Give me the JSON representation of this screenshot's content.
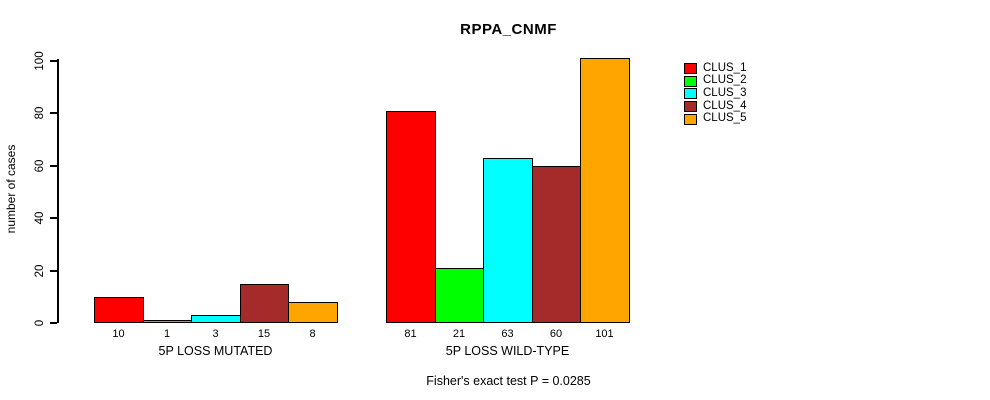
{
  "chart_data": {
    "type": "bar",
    "title": "RPPA_CNMF",
    "ylabel": "number of cases",
    "ylim": [
      0,
      100
    ],
    "yticks": [
      0,
      20,
      40,
      60,
      80,
      100
    ],
    "grid": false,
    "legend_position": "right",
    "categories": [
      "5P LOSS MUTATED",
      "5P LOSS WILD-TYPE"
    ],
    "series": [
      {
        "name": "CLUS_1",
        "color": "#FF0000",
        "values": [
          10,
          81
        ]
      },
      {
        "name": "CLUS_2",
        "color": "#00FF00",
        "values": [
          1,
          21
        ]
      },
      {
        "name": "CLUS_3",
        "color": "#00FFFF",
        "values": [
          3,
          63
        ]
      },
      {
        "name": "CLUS_4",
        "color": "#A52A2A",
        "values": [
          15,
          60
        ]
      },
      {
        "name": "CLUS_5",
        "color": "#FFA500",
        "values": [
          8,
          101
        ]
      }
    ],
    "bar_value_labels": [
      [
        "10",
        "1",
        "3",
        "15",
        "8"
      ],
      [
        "81",
        "21",
        "63",
        "60",
        "101"
      ]
    ],
    "annotation": "Fisher's exact test P = 0.0285"
  }
}
